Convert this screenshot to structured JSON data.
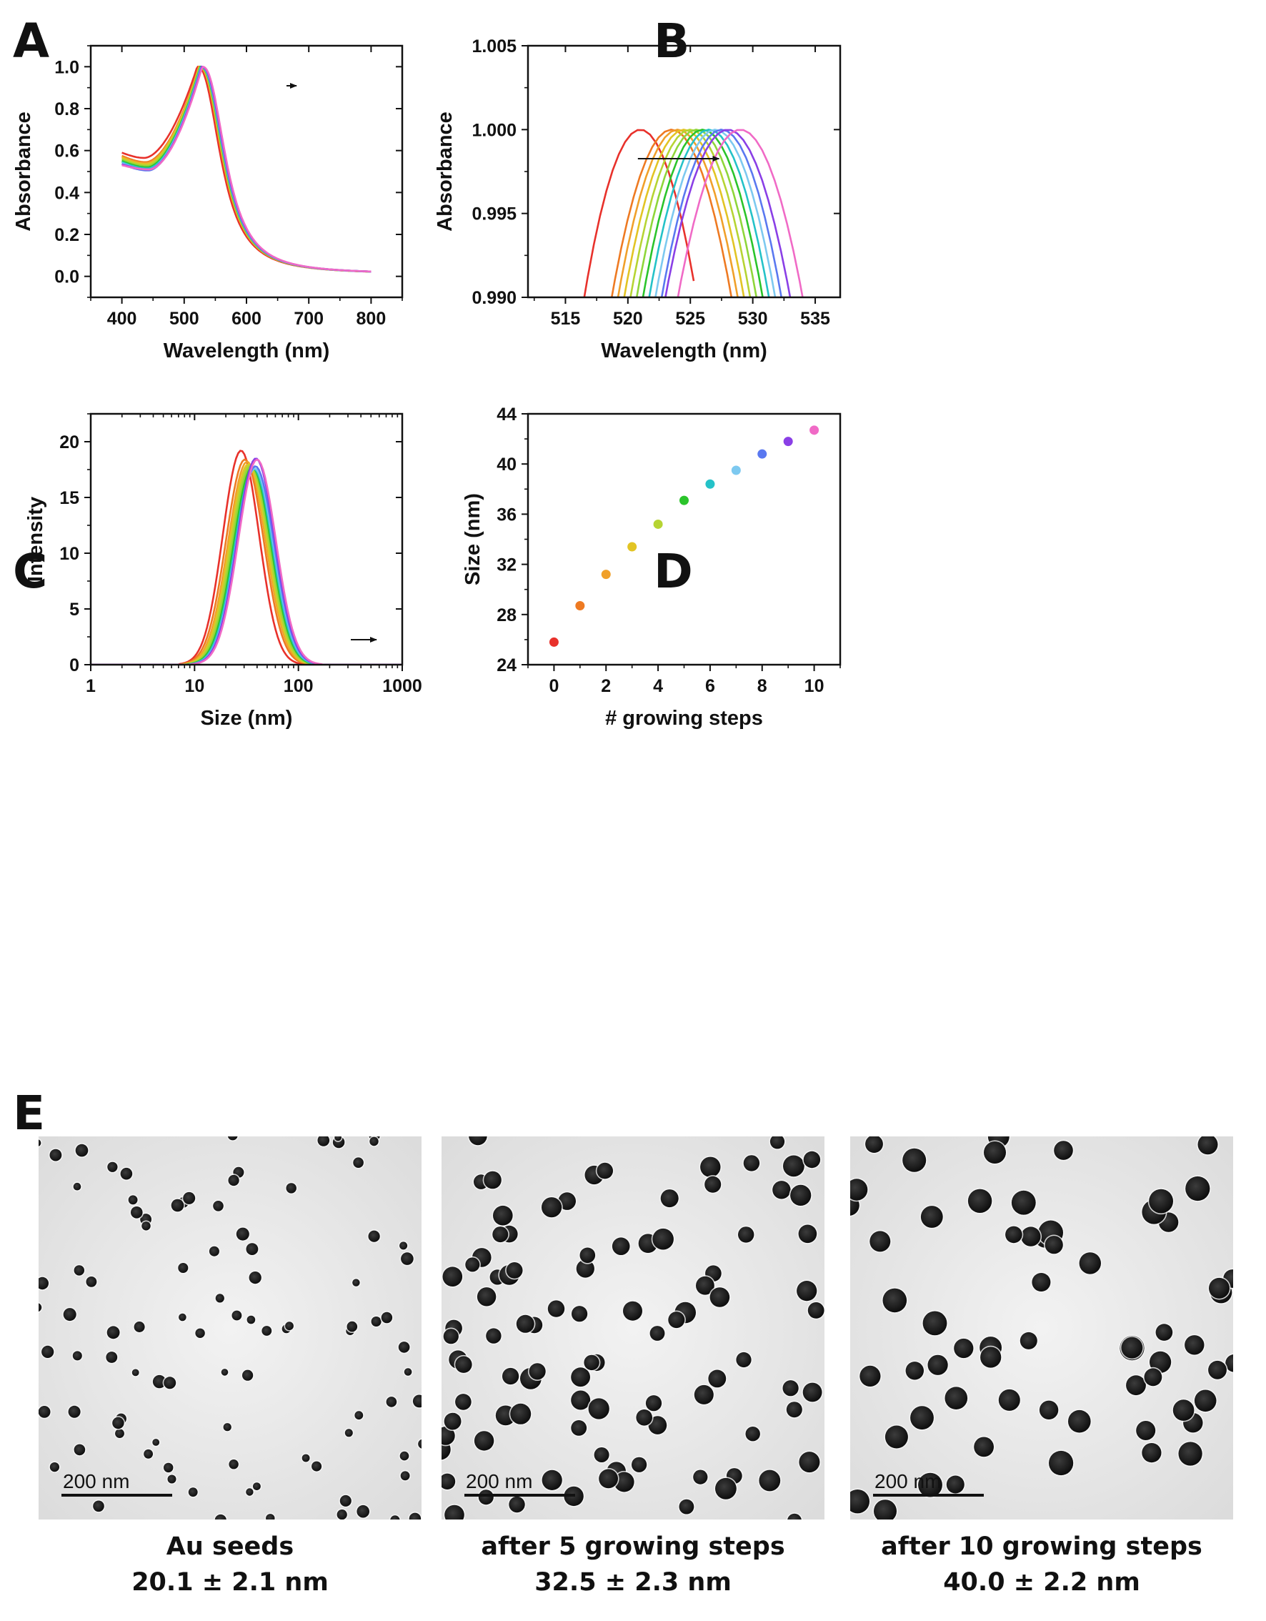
{
  "panel_letters": {
    "a": "A",
    "b": "B",
    "c": "C",
    "d": "D",
    "e": "E"
  },
  "series_colors": [
    "#e8312b",
    "#ee7a22",
    "#f0a02a",
    "#e2c424",
    "#b6d433",
    "#8fd63a",
    "#2bc42b",
    "#24c2c8",
    "#7dc9f0",
    "#5a78f0",
    "#8a3fe6",
    "#f06ac6"
  ],
  "chart_data": [
    {
      "id": "A",
      "type": "line",
      "title": "",
      "xlabel": "Wavelength (nm)",
      "ylabel": "Absorbance",
      "xlim": [
        350,
        850
      ],
      "ylim": [
        -0.1,
        1.1
      ],
      "xticks": [
        400,
        500,
        600,
        700,
        800
      ],
      "yticks": [
        0.0,
        0.2,
        0.4,
        0.6,
        0.8,
        1.0
      ],
      "xtick_labels": [
        "400",
        "500",
        "600",
        "700",
        "800"
      ],
      "ytick_labels": [
        "0.0",
        "0.2",
        "0.4",
        "0.6",
        "0.8",
        "1.0"
      ],
      "annotation": "arrow indicating red-shift of peak",
      "series_count": 12,
      "peak_wavelengths": [
        521,
        523.5,
        524,
        524.5,
        525,
        525.5,
        526,
        526.5,
        527,
        527.5,
        528,
        529
      ],
      "start_absorbance": [
        0.59,
        0.575,
        0.57,
        0.565,
        0.56,
        0.555,
        0.55,
        0.545,
        0.54,
        0.535,
        0.535,
        0.53
      ],
      "trough_absorbance": [
        0.565,
        0.545,
        0.54,
        0.535,
        0.53,
        0.525,
        0.52,
        0.515,
        0.51,
        0.505,
        0.51,
        0.51
      ],
      "tail_absorbance": 0.012
    },
    {
      "id": "B",
      "type": "line",
      "title": "",
      "xlabel": "Wavelength (nm)",
      "ylabel": "Absorbance",
      "xlim": [
        512,
        537
      ],
      "ylim": [
        0.99,
        1.005
      ],
      "xticks": [
        515,
        520,
        525,
        530,
        535
      ],
      "yticks": [
        0.99,
        0.995,
        1.0,
        1.005
      ],
      "xtick_labels": [
        "515",
        "520",
        "525",
        "530",
        "535"
      ],
      "ytick_labels": [
        "0.990",
        "0.995",
        "1.000",
        "1.005"
      ],
      "annotation": "arrow indicating red-shift of peak",
      "peak_wavelengths": [
        521,
        523.5,
        524,
        524.5,
        525,
        525.5,
        526,
        526.5,
        527,
        527.5,
        528,
        529
      ],
      "half_width_at_0_990": [
        4.5,
        4.8,
        4.8,
        4.8,
        4.8,
        4.8,
        4.8,
        4.8,
        4.8,
        4.8,
        5.0,
        5.0
      ]
    },
    {
      "id": "C",
      "type": "line",
      "title": "",
      "xlabel": "Size (nm)",
      "ylabel": "Intensity",
      "xscale": "log",
      "xlim": [
        1,
        1000
      ],
      "ylim": [
        0,
        22.5
      ],
      "xticks": [
        1,
        10,
        100,
        1000
      ],
      "yticks": [
        0,
        5,
        10,
        15,
        20
      ],
      "xtick_labels": [
        "1",
        "10",
        "100",
        "1000"
      ],
      "ytick_labels": [
        "0",
        "5",
        "10",
        "15",
        "20"
      ],
      "annotation": "arrow indicating shift to larger size",
      "peak_sizes": [
        28,
        30.5,
        32,
        33,
        34,
        35,
        36,
        37,
        38,
        38.5,
        39,
        40
      ],
      "peak_intensities": [
        19.2,
        18.4,
        18.2,
        18.0,
        17.9,
        17.8,
        17.7,
        17.6,
        17.6,
        17.8,
        18.5,
        18.4
      ],
      "log_sigma": [
        0.28,
        0.29,
        0.29,
        0.29,
        0.29,
        0.29,
        0.29,
        0.29,
        0.29,
        0.29,
        0.29,
        0.29
      ]
    },
    {
      "id": "D",
      "type": "scatter",
      "title": "",
      "xlabel": "# growing steps",
      "ylabel": "Size (nm)",
      "xlim": [
        -1,
        11
      ],
      "ylim": [
        24,
        44
      ],
      "xticks": [
        0,
        2,
        4,
        6,
        8,
        10
      ],
      "yticks": [
        24,
        28,
        32,
        36,
        40,
        44
      ],
      "xtick_labels": [
        "0",
        "2",
        "4",
        "6",
        "8",
        "10"
      ],
      "ytick_labels": [
        "24",
        "28",
        "32",
        "36",
        "40",
        "44"
      ],
      "x": [
        0,
        1,
        2,
        3,
        4,
        5,
        6,
        7,
        8,
        9,
        10
      ],
      "y": [
        25.8,
        28.7,
        31.2,
        33.4,
        35.2,
        37.1,
        38.4,
        39.5,
        40.8,
        41.8,
        42.7
      ],
      "colors": [
        "#e8312b",
        "#ee7a22",
        "#f0a02a",
        "#e2c424",
        "#b6d433",
        "#2bc42b",
        "#24c2c8",
        "#7dc9f0",
        "#5a78f0",
        "#8a3fe6",
        "#f06ac6"
      ]
    }
  ],
  "tem_panels": [
    {
      "id": "seeds",
      "scale_bar_label": "200 nm",
      "caption_line1": "Au seeds",
      "caption_line2": "20.1 ± 2.1 nm"
    },
    {
      "id": "step5",
      "scale_bar_label": "200 nm",
      "caption_line1": "after 5 growing steps",
      "caption_line2": "32.5 ± 2.3 nm"
    },
    {
      "id": "step10",
      "scale_bar_label": "200 nm",
      "caption_line1": "after 10 growing steps",
      "caption_line2": "40.0 ± 2.2 nm"
    }
  ]
}
